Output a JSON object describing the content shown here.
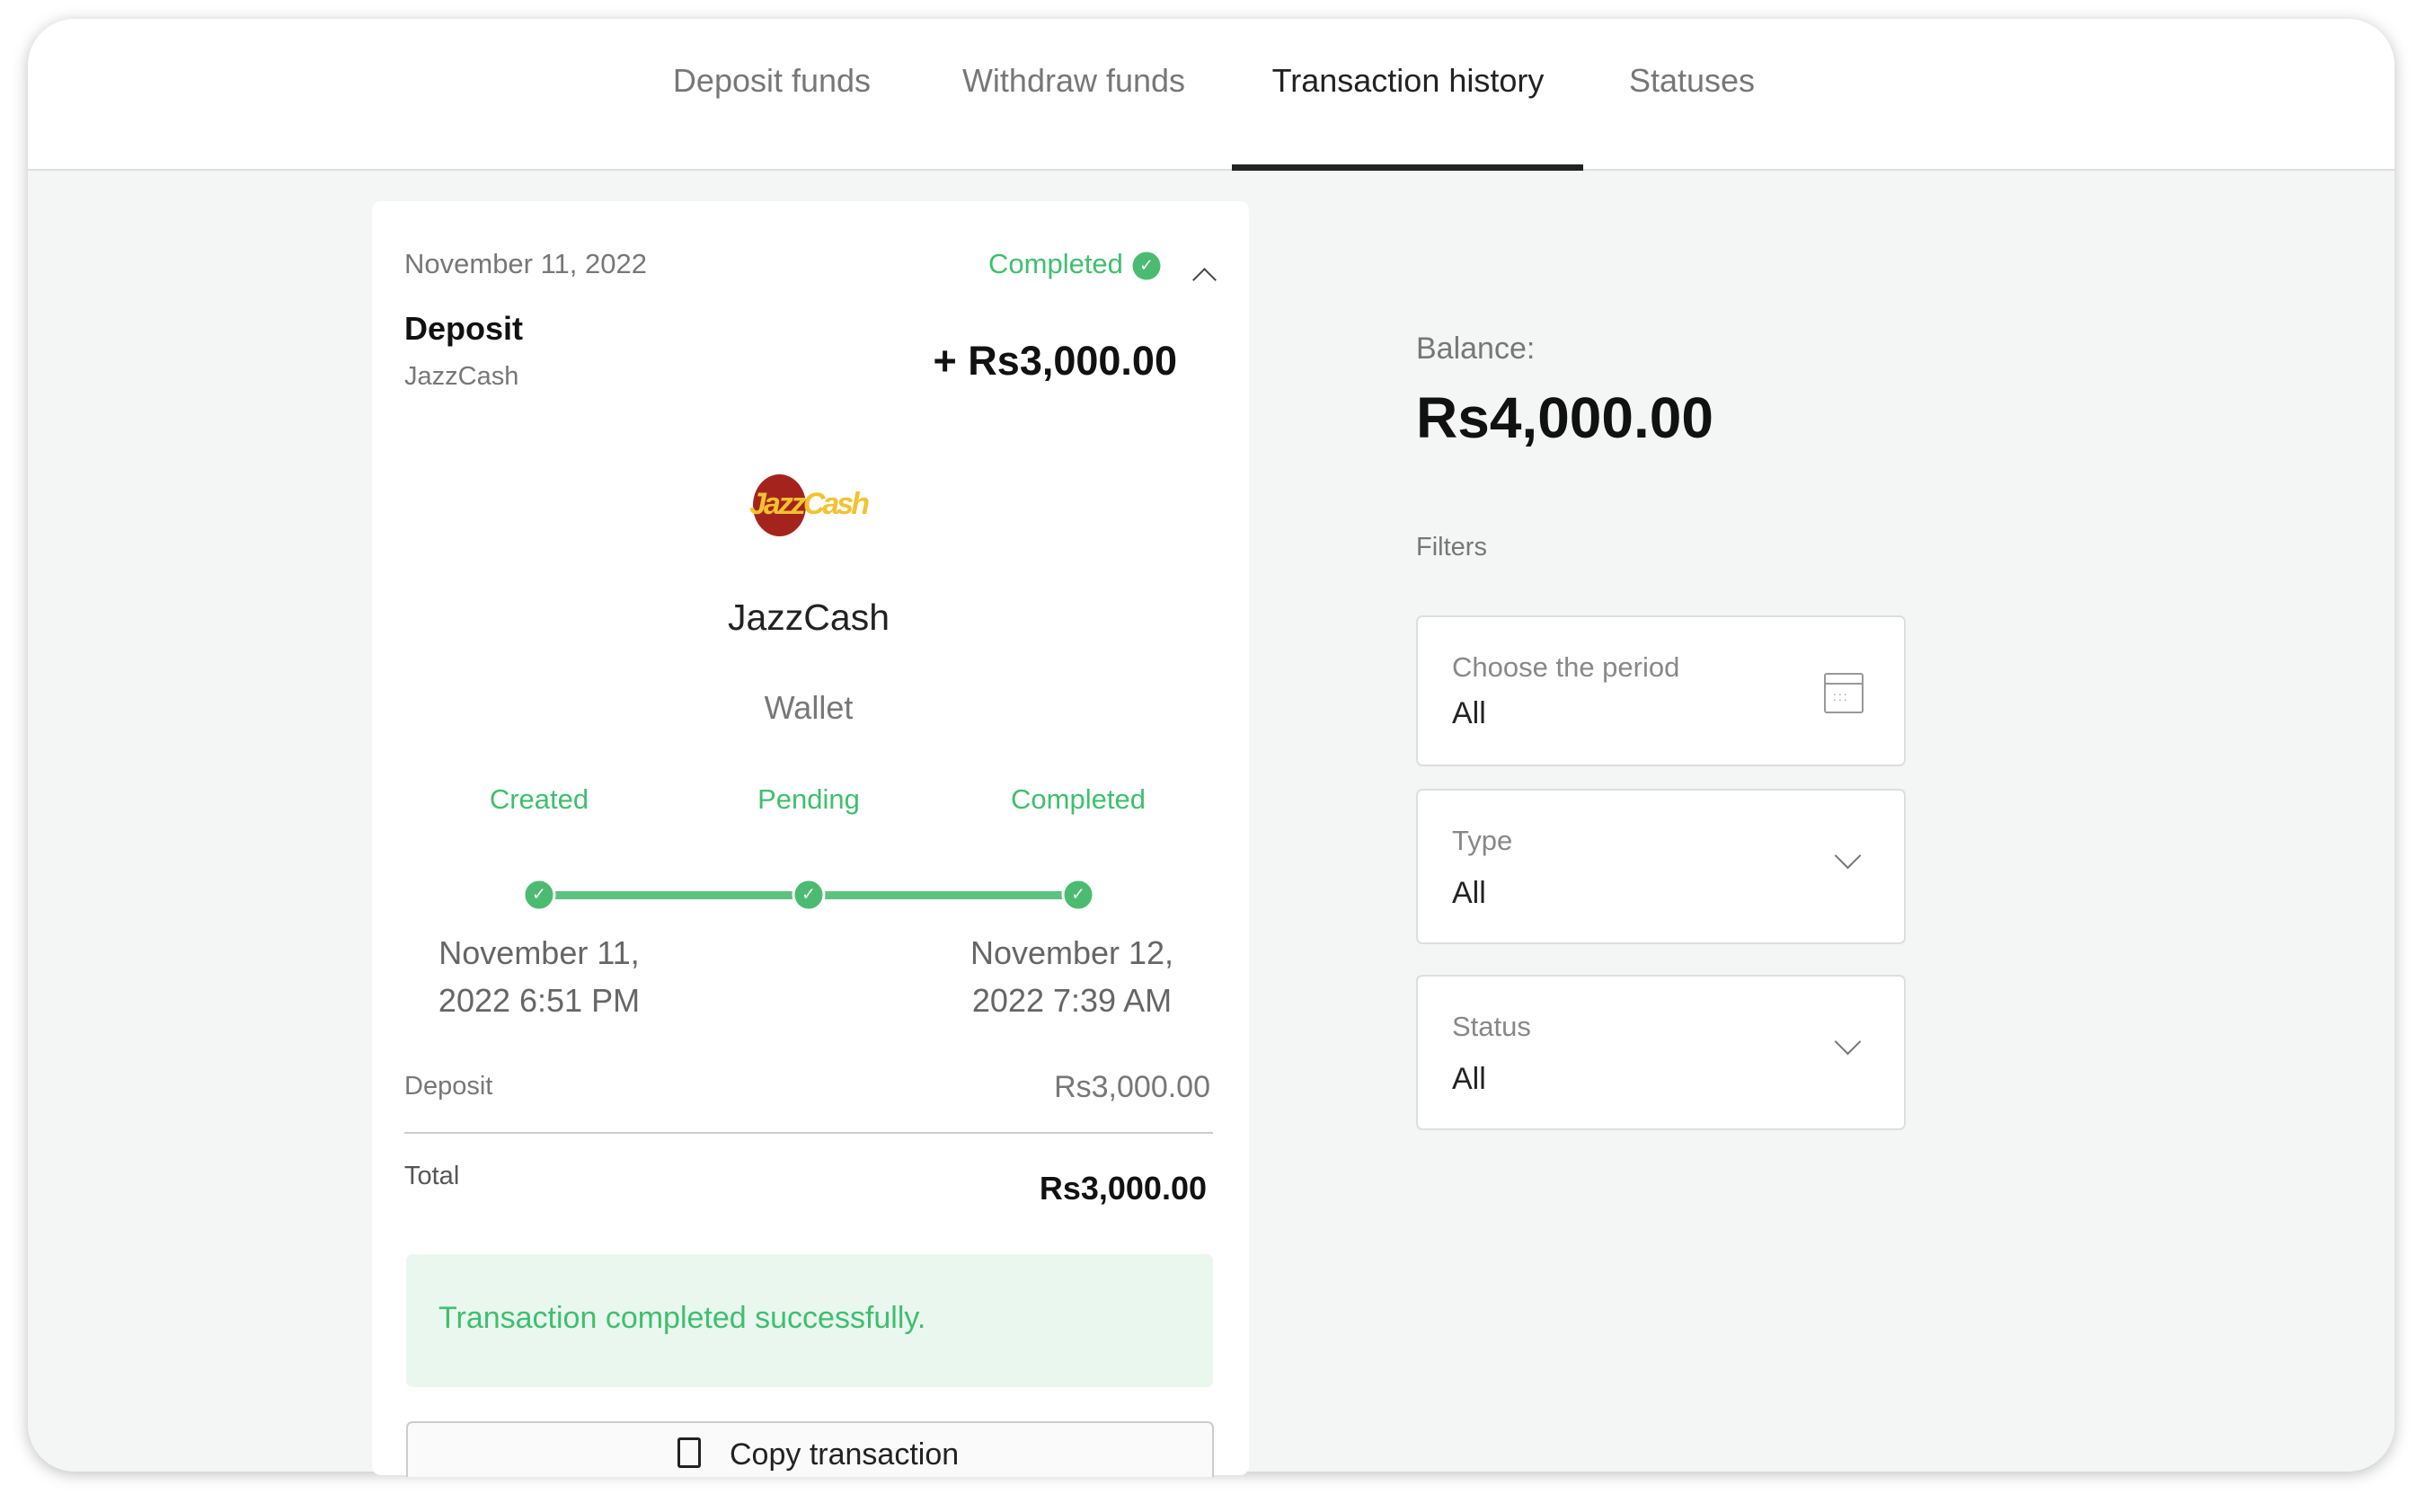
{
  "tabs": [
    {
      "label": "Deposit funds"
    },
    {
      "label": "Withdraw funds"
    },
    {
      "label": "Transaction history",
      "active": true
    },
    {
      "label": "Statuses"
    }
  ],
  "transaction": {
    "date": "November 11, 2022",
    "status": "Completed",
    "type": "Deposit",
    "method": "JazzCash",
    "amount": "+ Rs3,000.00",
    "logo_text": "JazzCash",
    "provider_name": "JazzCash",
    "provider_type": "Wallet",
    "steps": [
      {
        "label": "Created",
        "date_line1": "November 11,",
        "date_line2": "2022 6:51 PM"
      },
      {
        "label": "Pending",
        "date_line1": "",
        "date_line2": ""
      },
      {
        "label": "Completed",
        "date_line1": "November 12,",
        "date_line2": "2022 7:39 AM"
      }
    ],
    "deposit_label": "Deposit",
    "deposit_value": "Rs3,000.00",
    "total_label": "Total",
    "total_value": "Rs3,000.00",
    "success_message": "Transaction completed successfully.",
    "copy_label": "Copy transaction"
  },
  "balance": {
    "label": "Balance:",
    "value": "Rs4,000.00"
  },
  "filters": {
    "title": "Filters",
    "period": {
      "label": "Choose the period",
      "value": "All",
      "icon": "calendar-icon"
    },
    "type": {
      "label": "Type",
      "value": "All",
      "icon": "chevron-down-icon"
    },
    "status": {
      "label": "Status",
      "value": "All",
      "icon": "chevron-down-icon"
    }
  },
  "colors": {
    "success": "#3fbf6e",
    "success_bg": "#eaf7ef",
    "text": "#222222",
    "muted": "#777777"
  }
}
